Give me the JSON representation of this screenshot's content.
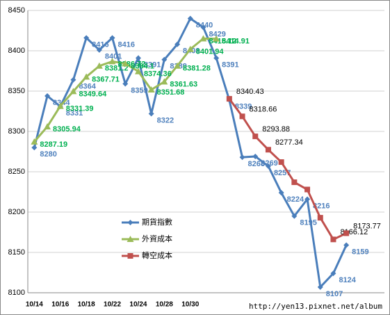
{
  "chart_data": {
    "type": "line",
    "categories": [
      "10/14",
      null,
      "10/16",
      null,
      "10/18",
      null,
      "10/22",
      null,
      "10/24",
      null,
      "10/28",
      null,
      "10/30",
      null,
      null,
      null,
      null,
      null,
      null,
      null,
      null,
      null,
      null,
      null,
      null
    ],
    "series": [
      {
        "name": "期貨指數",
        "color": "#4a7ebb",
        "label_color": "#4f81bd",
        "marker": "diamond",
        "values": [
          8280,
          8344,
          8331,
          8364,
          8416,
          8401,
          8416,
          8359,
          8391,
          8322,
          8389,
          8408,
          8440,
          8429,
          8391,
          8339,
          8268,
          8269,
          8257,
          8224,
          8195,
          8216,
          8107,
          8124,
          8159
        ]
      },
      {
        "name": "外資成本",
        "color": "#9bbb59",
        "label_color": "#00b050",
        "marker": "triangle",
        "values": [
          8287.19,
          8305.94,
          8331.39,
          8349.64,
          8367.71,
          8381.2,
          8386.72,
          8384.1,
          8374.36,
          8351.68,
          8361.63,
          8381.28,
          8401.94,
          8415.12,
          8414.91,
          null,
          null,
          null,
          null,
          null,
          null,
          null,
          null,
          null,
          null
        ]
      },
      {
        "name": "轉空成本",
        "color": "#c0504d",
        "label_color": "#000000",
        "marker": "square",
        "values": [
          null,
          null,
          null,
          null,
          null,
          null,
          null,
          null,
          null,
          null,
          null,
          null,
          null,
          null,
          null,
          8340.43,
          8318.66,
          8293.88,
          8277.34,
          8262,
          8237,
          8228,
          8193,
          8166.12,
          8173.77
        ],
        "value_labels": [
          null,
          null,
          null,
          null,
          null,
          null,
          null,
          null,
          null,
          null,
          null,
          null,
          null,
          null,
          null,
          "8340.43",
          "8318.66",
          "8293.88",
          "8277.34",
          null,
          null,
          null,
          null,
          "8166.12",
          "8173.77"
        ]
      }
    ],
    "ylim": [
      8100,
      8450
    ],
    "yticks": [
      8100,
      8150,
      8200,
      8250,
      8300,
      8350,
      8400,
      8450
    ],
    "grid": true,
    "watermark": "http://yen13.pixnet.net/album"
  }
}
